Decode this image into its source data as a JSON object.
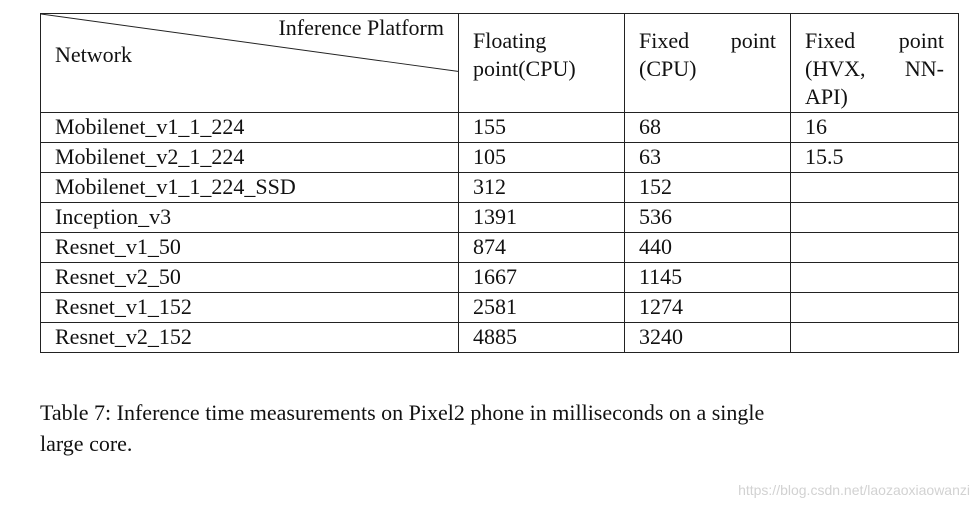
{
  "table": {
    "header": {
      "diag_top": "Inference Platform",
      "diag_bottom": "Network",
      "col1": [
        "Floating",
        "point(CPU)"
      ],
      "col2": {
        "line1": [
          "Fixed",
          "point"
        ],
        "line2": "(CPU)"
      },
      "col3": {
        "line1": [
          "Fixed",
          "point"
        ],
        "line2": [
          "(HVX,",
          "NN-"
        ],
        "line3": "API)"
      }
    },
    "rows": [
      {
        "network": "Mobilenet_v1_1_224",
        "float_cpu": "155",
        "fixed_cpu": "68",
        "fixed_hvx": "16"
      },
      {
        "network": "Mobilenet_v2_1_224",
        "float_cpu": "105",
        "fixed_cpu": "63",
        "fixed_hvx": "15.5"
      },
      {
        "network": "Mobilenet_v1_1_224_SSD",
        "float_cpu": "312",
        "fixed_cpu": "152",
        "fixed_hvx": ""
      },
      {
        "network": "Inception_v3",
        "float_cpu": "1391",
        "fixed_cpu": "536",
        "fixed_hvx": ""
      },
      {
        "network": "Resnet_v1_50",
        "float_cpu": "874",
        "fixed_cpu": "440",
        "fixed_hvx": ""
      },
      {
        "network": "Resnet_v2_50",
        "float_cpu": "1667",
        "fixed_cpu": "1145",
        "fixed_hvx": ""
      },
      {
        "network": "Resnet_v1_152",
        "float_cpu": "2581",
        "fixed_cpu": "1274",
        "fixed_hvx": ""
      },
      {
        "network": "Resnet_v2_152",
        "float_cpu": "4885",
        "fixed_cpu": "3240",
        "fixed_hvx": ""
      }
    ]
  },
  "caption": {
    "line1": "Table 7:  Inference time measurements on Pixel2 phone in milliseconds on a single",
    "line2": "large core."
  },
  "watermark": "https://blog.csdn.net/laozaoxiaowanzi"
}
